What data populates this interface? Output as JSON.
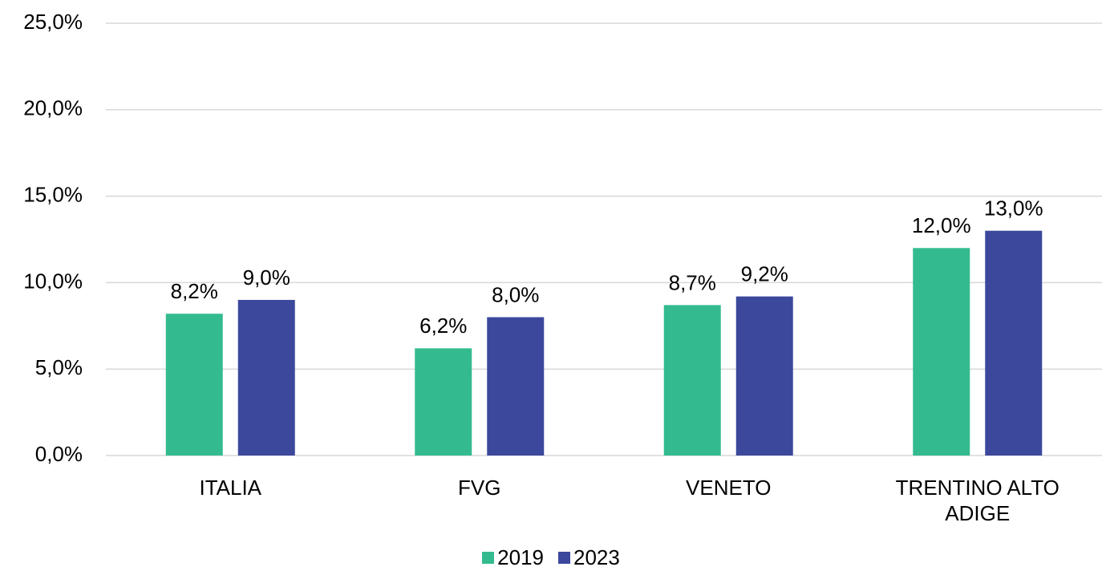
{
  "chart_data": {
    "type": "bar",
    "categories": [
      "ITALIA",
      "FVG",
      "VENETO",
      "TRENTINO ALTO ADIGE"
    ],
    "series": [
      {
        "name": "2019",
        "color": "#33bb8f",
        "values": [
          8.2,
          6.2,
          8.7,
          12.0
        ],
        "value_labels": [
          "8,2%",
          "6,2%",
          "8,7%",
          "12,0%"
        ]
      },
      {
        "name": "2023",
        "color": "#3c489c",
        "values": [
          9.0,
          8.0,
          9.2,
          13.0
        ],
        "value_labels": [
          "9,0%",
          "8,0%",
          "9,2%",
          "13,0%"
        ]
      }
    ],
    "ylim": [
      0,
      25
    ],
    "yticks": [
      {
        "value": 0,
        "label": "0,0%"
      },
      {
        "value": 5,
        "label": "5,0%"
      },
      {
        "value": 10,
        "label": "10,0%"
      },
      {
        "value": 15,
        "label": "15,0%"
      },
      {
        "value": 20,
        "label": "20,0%"
      },
      {
        "value": 25,
        "label": "25,0%"
      }
    ],
    "grid": true,
    "legend": "bottom"
  }
}
